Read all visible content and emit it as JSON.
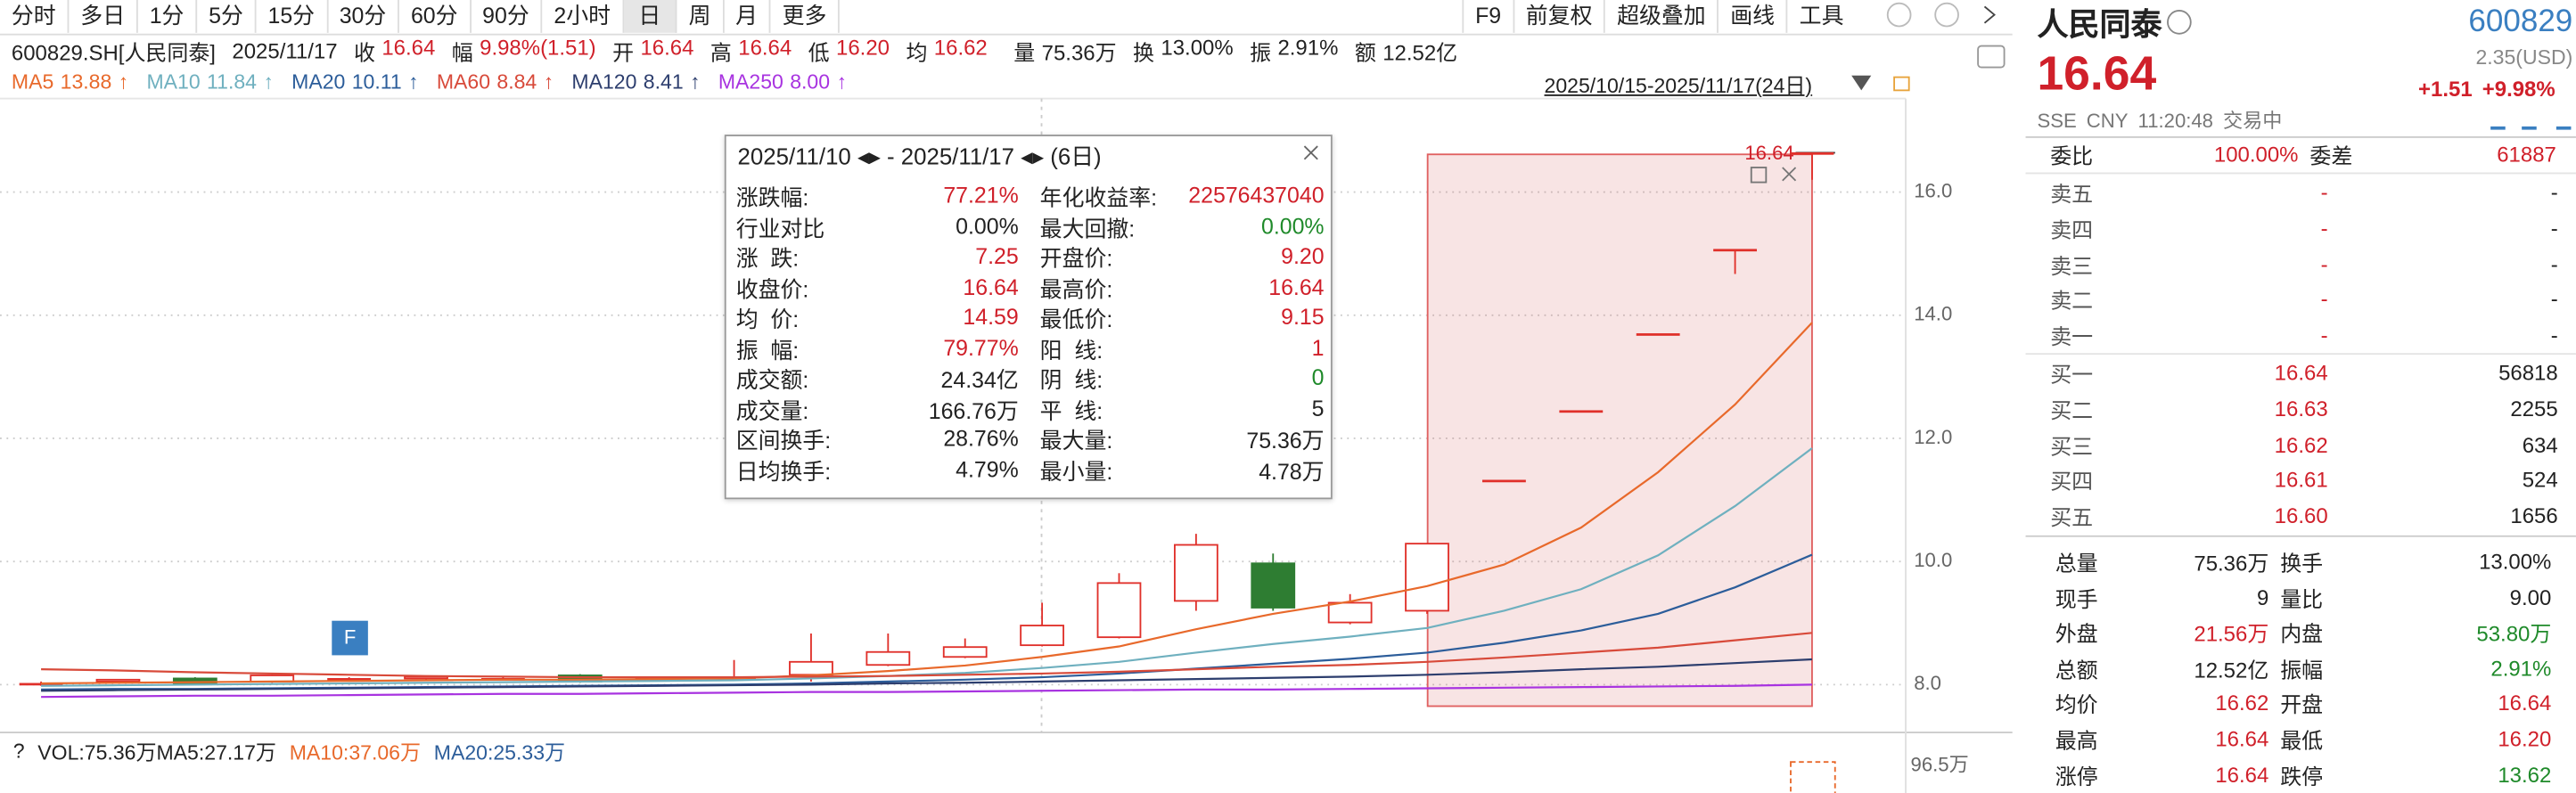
{
  "toolbar": {
    "periods": [
      "分时",
      "多日",
      "1分",
      "5分",
      "15分",
      "30分",
      "60分",
      "90分",
      "2小时",
      "日",
      "周",
      "月",
      "更多"
    ],
    "selected_index": 9,
    "actions": [
      "F9",
      "前复权",
      "超级叠加",
      "画线",
      "工具"
    ]
  },
  "quote_line": {
    "security": "600829.SH[人民同泰]",
    "date": "2025/11/17",
    "items": [
      {
        "label": "收",
        "value": "16.64",
        "color": "#d0202a"
      },
      {
        "label": "幅",
        "value": "9.98%(1.51)",
        "color": "#d0202a"
      },
      {
        "label": "开",
        "value": "16.64",
        "color": "#d0202a"
      },
      {
        "label": "高",
        "value": "16.64",
        "color": "#d0202a"
      },
      {
        "label": "低",
        "value": "16.20",
        "color": "#d0202a"
      },
      {
        "label": "均",
        "value": "16.62",
        "color": "#d0202a"
      },
      {
        "label": "量",
        "value": "75.36万",
        "color": "#222"
      },
      {
        "label": "换",
        "value": "13.00%",
        "color": "#222"
      },
      {
        "label": "振",
        "value": "2.91%",
        "color": "#222"
      },
      {
        "label": "额",
        "value": "12.52亿",
        "color": "#222"
      }
    ]
  },
  "range_label": "2025/10/15-2025/11/17(24日)",
  "chart_data": {
    "type": "candlestick",
    "ylim": [
      7.25,
      17.52
    ],
    "yticks": [
      {
        "value": 8,
        "label": "8.0"
      },
      {
        "value": 10,
        "label": "10.0"
      },
      {
        "value": 12,
        "label": "12.0"
      },
      {
        "value": 14,
        "label": "14.0"
      },
      {
        "value": 16,
        "label": "16.0"
      }
    ],
    "grid": true,
    "up_color": "#e0302a",
    "down_color": "#2e7d32",
    "open": [
      8.02,
      8.05,
      8.1,
      8.05,
      8.1,
      8.1,
      8.1,
      8.15,
      8.1,
      8.12,
      8.16,
      8.32,
      8.45,
      8.64,
      8.77,
      9.36,
      9.97,
      9.01,
      9.2,
      11.32,
      12.45,
      13.7,
      15.07,
      16.64
    ],
    "high": [
      8.05,
      8.09,
      8.12,
      8.16,
      8.12,
      8.14,
      8.12,
      8.17,
      8.12,
      8.4,
      8.83,
      8.83,
      8.75,
      9.33,
      9.81,
      10.45,
      10.13,
      9.47,
      10.29,
      11.32,
      12.45,
      13.7,
      15.07,
      16.64
    ],
    "low": [
      7.98,
      8.03,
      8.0,
      8.03,
      8.08,
      8.08,
      8.08,
      8.03,
      8.08,
      8.08,
      8.05,
      8.3,
      8.43,
      8.62,
      8.75,
      9.2,
      9.2,
      8.98,
      9.15,
      11.32,
      12.45,
      13.7,
      14.67,
      16.2
    ],
    "close": [
      8.02,
      8.08,
      8.02,
      8.15,
      8.1,
      8.13,
      8.1,
      8.05,
      8.1,
      8.12,
      8.37,
      8.53,
      8.61,
      8.96,
      9.65,
      10.27,
      9.25,
      9.33,
      10.29,
      11.32,
      12.45,
      13.7,
      15.07,
      16.64
    ],
    "series": [
      {
        "name": "MA5",
        "value_label": "13.88",
        "trend": "↑",
        "color": "#e8692b",
        "values": [
          8.02,
          8.03,
          8.04,
          8.05,
          8.06,
          8.07,
          8.08,
          8.08,
          8.09,
          8.1,
          8.15,
          8.22,
          8.31,
          8.45,
          8.62,
          8.9,
          9.15,
          9.35,
          9.6,
          9.95,
          10.55,
          11.45,
          12.55,
          13.88
        ]
      },
      {
        "name": "MA10",
        "value_label": "11.84",
        "trend": "↑",
        "color": "#6fb0bf",
        "values": [
          7.98,
          7.99,
          8.0,
          8.01,
          8.02,
          8.03,
          8.04,
          8.05,
          8.06,
          8.07,
          8.1,
          8.14,
          8.19,
          8.27,
          8.37,
          8.52,
          8.66,
          8.78,
          8.92,
          9.2,
          9.55,
          10.1,
          10.9,
          11.84
        ]
      },
      {
        "name": "MA20",
        "value_label": "10.11",
        "trend": "↑",
        "color": "#2c5d9a",
        "values": [
          7.92,
          7.93,
          7.93,
          7.94,
          7.95,
          7.96,
          7.97,
          7.98,
          7.99,
          8.0,
          8.02,
          8.05,
          8.08,
          8.12,
          8.18,
          8.26,
          8.34,
          8.42,
          8.52,
          8.68,
          8.88,
          9.15,
          9.58,
          10.11
        ]
      },
      {
        "name": "MA60",
        "value_label": "8.84",
        "trend": "↑",
        "color": "#d84a3a",
        "values": [
          8.25,
          8.23,
          8.2,
          8.18,
          8.16,
          8.14,
          8.13,
          8.12,
          8.12,
          8.12,
          8.13,
          8.14,
          8.16,
          8.18,
          8.21,
          8.25,
          8.29,
          8.32,
          8.37,
          8.44,
          8.52,
          8.6,
          8.72,
          8.84
        ]
      },
      {
        "name": "MA120",
        "value_label": "8.41",
        "trend": "↑",
        "color": "#2d3e6e",
        "values": [
          7.9,
          7.91,
          7.92,
          7.93,
          7.94,
          7.95,
          7.96,
          7.97,
          7.98,
          7.99,
          8.0,
          8.02,
          8.03,
          8.05,
          8.07,
          8.09,
          8.11,
          8.13,
          8.16,
          8.2,
          8.25,
          8.29,
          8.35,
          8.41
        ]
      },
      {
        "name": "MA250",
        "value_label": "8.00",
        "trend": "↑",
        "color": "#a833e0",
        "values": [
          7.8,
          7.81,
          7.82,
          7.82,
          7.83,
          7.84,
          7.85,
          7.85,
          7.86,
          7.87,
          7.88,
          7.88,
          7.89,
          7.9,
          7.91,
          7.92,
          7.92,
          7.93,
          7.94,
          7.95,
          7.96,
          7.97,
          7.98,
          8.0
        ]
      }
    ],
    "selection_label": "16.64",
    "badge": "F"
  },
  "info_box": {
    "title": "2025/11/10 ◂▸ - 2025/11/17 ◂▸ (6日)",
    "rows": [
      [
        {
          "label": "涨跌幅:",
          "value": "77.21%",
          "color": "#d0202a"
        },
        {
          "label": "年化收益率:",
          "value": "22576437040",
          "color": "#d0202a"
        }
      ],
      [
        {
          "label": "行业对比",
          "value": "0.00%",
          "color": "#222"
        },
        {
          "label": "最大回撤:",
          "value": "0.00%",
          "color": "#1f8a2a"
        }
      ],
      [
        {
          "label": "涨  跌:",
          "value": "7.25",
          "color": "#d0202a"
        },
        {
          "label": "开盘价:",
          "value": "9.20",
          "color": "#d0202a"
        }
      ],
      [
        {
          "label": "收盘价:",
          "value": "16.64",
          "color": "#d0202a"
        },
        {
          "label": "最高价:",
          "value": "16.64",
          "color": "#d0202a"
        }
      ],
      [
        {
          "label": "均  价:",
          "value": "14.59",
          "color": "#d0202a"
        },
        {
          "label": "最低价:",
          "value": "9.15",
          "color": "#d0202a"
        }
      ],
      [
        {
          "label": "振  幅:",
          "value": "79.77%",
          "color": "#d0202a"
        },
        {
          "label": "阳  线:",
          "value": "1",
          "color": "#d0202a"
        }
      ],
      [
        {
          "label": "成交额:",
          "value": "24.34亿",
          "color": "#222"
        },
        {
          "label": "阴  线:",
          "value": "0",
          "color": "#1f8a2a"
        }
      ],
      [
        {
          "label": "成交量:",
          "value": "166.76万",
          "color": "#222"
        },
        {
          "label": "平  线:",
          "value": "5",
          "color": "#222"
        }
      ],
      [
        {
          "label": "区间换手:",
          "value": "28.76%",
          "color": "#222"
        },
        {
          "label": "最大量:",
          "value": "75.36万",
          "color": "#222"
        }
      ],
      [
        {
          "label": "日均换手:",
          "value": "4.79%",
          "color": "#222"
        },
        {
          "label": "最小量:",
          "value": "4.78万",
          "color": "#222"
        }
      ]
    ]
  },
  "volume": {
    "help": "?",
    "labels": [
      {
        "text": "VOL:75.36万MA5:27.17万",
        "color": "#222"
      },
      {
        "text": "MA10:37.06万",
        "color": "#e8692b"
      },
      {
        "text": "MA20:25.33万",
        "color": "#2c5d9a"
      }
    ],
    "axis_label": "96.5万"
  },
  "quote_panel": {
    "name": "人民同泰",
    "code": "600829",
    "price": "16.64",
    "usd": "2.35(USD)",
    "change": "+1.51",
    "change_pct": "+9.98%",
    "meta": [
      "SSE",
      "CNY",
      "11:20:48",
      "交易中"
    ],
    "ratio": {
      "label": "委比",
      "value": "100.00%",
      "label2": "委差",
      "value2": "61887"
    },
    "asks": [
      {
        "label": "卖五",
        "price": "-",
        "volume": "-"
      },
      {
        "label": "卖四",
        "price": "-",
        "volume": "-"
      },
      {
        "label": "卖三",
        "price": "-",
        "volume": "-"
      },
      {
        "label": "卖二",
        "price": "-",
        "volume": "-"
      },
      {
        "label": "卖一",
        "price": "-",
        "volume": "-"
      }
    ],
    "bids": [
      {
        "label": "买一",
        "price": "16.64",
        "volume": "56818"
      },
      {
        "label": "买二",
        "price": "16.63",
        "volume": "2255"
      },
      {
        "label": "买三",
        "price": "16.62",
        "volume": "634"
      },
      {
        "label": "买四",
        "price": "16.61",
        "volume": "524"
      },
      {
        "label": "买五",
        "price": "16.60",
        "volume": "1656"
      }
    ],
    "stats": [
      [
        {
          "label": "总量",
          "value": "75.36万",
          "color": "#222"
        },
        {
          "label": "换手",
          "value": "13.00%",
          "color": "#222"
        }
      ],
      [
        {
          "label": "现手",
          "value": "9",
          "color": "#222"
        },
        {
          "label": "量比",
          "value": "9.00",
          "color": "#222"
        }
      ],
      [
        {
          "label": "外盘",
          "value": "21.56万",
          "color": "#d0202a"
        },
        {
          "label": "内盘",
          "value": "53.80万",
          "color": "#1f8a2a"
        }
      ],
      [
        {
          "label": "总额",
          "value": "12.52亿",
          "color": "#222"
        },
        {
          "label": "振幅",
          "value": "2.91%",
          "color": "#1f8a2a"
        }
      ],
      [
        {
          "label": "均价",
          "value": "16.62",
          "color": "#d0202a"
        },
        {
          "label": "开盘",
          "value": "16.64",
          "color": "#d0202a"
        }
      ],
      [
        {
          "label": "最高",
          "value": "16.64",
          "color": "#d0202a"
        },
        {
          "label": "最低",
          "value": "16.20",
          "color": "#d0202a"
        }
      ],
      [
        {
          "label": "涨停",
          "value": "16.64",
          "color": "#d0202a"
        },
        {
          "label": "跌停",
          "value": "13.62",
          "color": "#1f8a2a"
        }
      ]
    ]
  }
}
